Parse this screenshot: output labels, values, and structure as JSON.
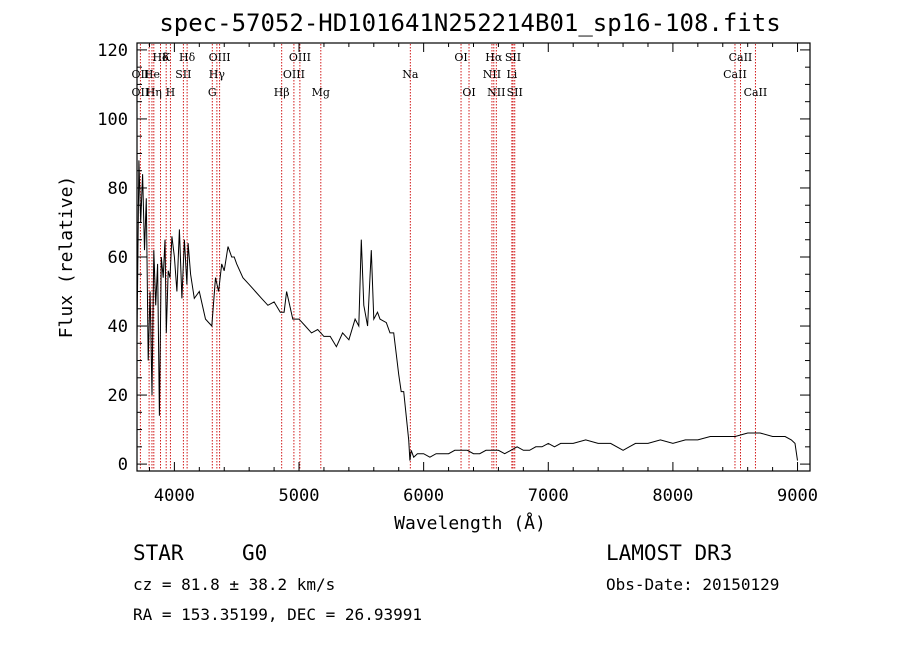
{
  "chart_data": {
    "type": "line",
    "title": "spec-57052-HD101641N252214B01_sp16-108.fits",
    "xlabel": "Wavelength (Å)",
    "ylabel": "Flux (relative)",
    "xlim": [
      3700,
      9100
    ],
    "ylim": [
      -2,
      122
    ],
    "xticks": [
      4000,
      5000,
      6000,
      7000,
      8000,
      9000
    ],
    "yticks": [
      0,
      20,
      40,
      60,
      80,
      100,
      120
    ],
    "spectrum": {
      "x": [
        3700,
        3715,
        3730,
        3745,
        3760,
        3775,
        3790,
        3805,
        3820,
        3835,
        3850,
        3865,
        3880,
        3895,
        3910,
        3925,
        3935,
        3950,
        3965,
        3980,
        4000,
        4020,
        4040,
        4060,
        4080,
        4100,
        4110,
        4130,
        4160,
        4200,
        4250,
        4300,
        4330,
        4355,
        4380,
        4400,
        4430,
        4460,
        4480,
        4500,
        4550,
        4600,
        4650,
        4700,
        4750,
        4800,
        4850,
        4880,
        4900,
        4950,
        5000,
        5050,
        5100,
        5150,
        5200,
        5250,
        5300,
        5350,
        5400,
        5450,
        5480,
        5500,
        5520,
        5550,
        5580,
        5600,
        5630,
        5650,
        5700,
        5730,
        5760,
        5780,
        5800,
        5820,
        5840,
        5860,
        5880,
        5890,
        5900,
        5920,
        5950,
        6000,
        6050,
        6100,
        6150,
        6200,
        6250,
        6300,
        6350,
        6400,
        6450,
        6500,
        6550,
        6600,
        6650,
        6700,
        6750,
        6800,
        6850,
        6900,
        6950,
        7000,
        7050,
        7100,
        7150,
        7200,
        7300,
        7400,
        7500,
        7600,
        7650,
        7700,
        7800,
        7900,
        8000,
        8100,
        8200,
        8300,
        8400,
        8500,
        8600,
        8700,
        8800,
        8900,
        8950,
        8980,
        9000
      ],
      "y": [
        36,
        88,
        70,
        84,
        62,
        77,
        30,
        50,
        20,
        62,
        46,
        58,
        14,
        60,
        54,
        65,
        38,
        56,
        54,
        66,
        60,
        50,
        68,
        48,
        65,
        52,
        64,
        55,
        48,
        50,
        42,
        40,
        54,
        50,
        58,
        56,
        63,
        60,
        60,
        58,
        54,
        52,
        50,
        48,
        46,
        47,
        44,
        44,
        50,
        42,
        42,
        40,
        38,
        39,
        37,
        37,
        34,
        38,
        36,
        42,
        40,
        65,
        46,
        40,
        62,
        42,
        44,
        42,
        41,
        38,
        38,
        32,
        26,
        21,
        21,
        14,
        7,
        1,
        4,
        2,
        3,
        3,
        2,
        3,
        3,
        3,
        4,
        4,
        4,
        3,
        3,
        4,
        4,
        4,
        3,
        4,
        5,
        4,
        4,
        5,
        5,
        6,
        5,
        6,
        6,
        6,
        7,
        6,
        6,
        4,
        5,
        6,
        6,
        7,
        6,
        7,
        7,
        8,
        8,
        8,
        9,
        9,
        8,
        8,
        7,
        6,
        1
      ]
    },
    "lines_row1": [
      {
        "label": "Hδ",
        "x": 3889
      },
      {
        "label": "K",
        "x": 3934
      },
      {
        "label": "Hδ",
        "x": 4102
      },
      {
        "label": "OIII",
        "x": 4363
      },
      {
        "label": "OIII",
        "x": 5007
      },
      {
        "label": "OI",
        "x": 6300
      },
      {
        "label": "Hα",
        "x": 6563
      },
      {
        "label": "SII",
        "x": 6717
      },
      {
        "label": "CaII",
        "x": 8542
      }
    ],
    "lines_row2": [
      {
        "label": "OII",
        "x": 3727
      },
      {
        "label": "He",
        "x": 3820
      },
      {
        "label": "SII",
        "x": 4072
      },
      {
        "label": "Hγ",
        "x": 4341
      },
      {
        "label": "OIII",
        "x": 4959
      },
      {
        "label": "Na",
        "x": 5893
      },
      {
        "label": "NII",
        "x": 6548
      },
      {
        "label": "Li",
        "x": 6708
      },
      {
        "label": "CaII",
        "x": 8498
      }
    ],
    "lines_row3": [
      {
        "label": "OII",
        "x": 3727
      },
      {
        "label": "Hη",
        "x": 3835
      },
      {
        "label": "H",
        "x": 3968
      },
      {
        "label": "G",
        "x": 4304
      },
      {
        "label": "Hβ",
        "x": 4861
      },
      {
        "label": "Mg",
        "x": 5175
      },
      {
        "label": "OI",
        "x": 6364
      },
      {
        "label": "NII",
        "x": 6583
      },
      {
        "label": "SII",
        "x": 6731
      },
      {
        "label": "CaII",
        "x": 8662
      }
    ],
    "extra_markers": [
      3797,
      3889,
      3934,
      4102
    ]
  },
  "info": {
    "object_class": "STAR",
    "subclass": "G0",
    "survey": "LAMOST DR3",
    "cz": "cz = 81.8 ± 38.2 km/s",
    "obs_date": "Obs-Date: 20150129",
    "coords": "RA = 153.35199, DEC =  26.93991"
  }
}
